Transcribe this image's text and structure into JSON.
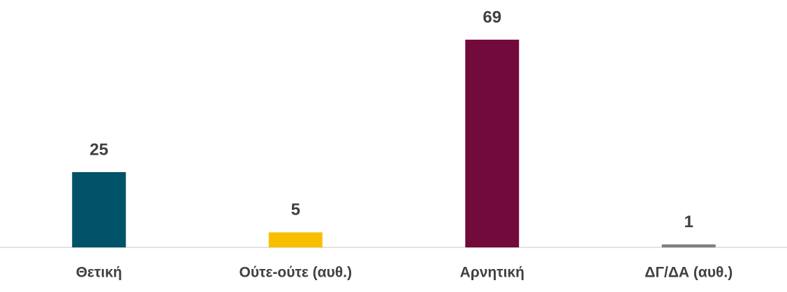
{
  "chart_data": {
    "type": "bar",
    "categories": [
      "Θετική",
      "Ούτε-ούτε (αυθ.)",
      "Αρνητική",
      "ΔΓ/ΔΑ (αυθ.)"
    ],
    "values": [
      25,
      5,
      69,
      1
    ],
    "colors": [
      "#005268",
      "#f8bf00",
      "#720a3b",
      "#7f7f7f"
    ],
    "ylim": [
      0,
      75
    ]
  }
}
